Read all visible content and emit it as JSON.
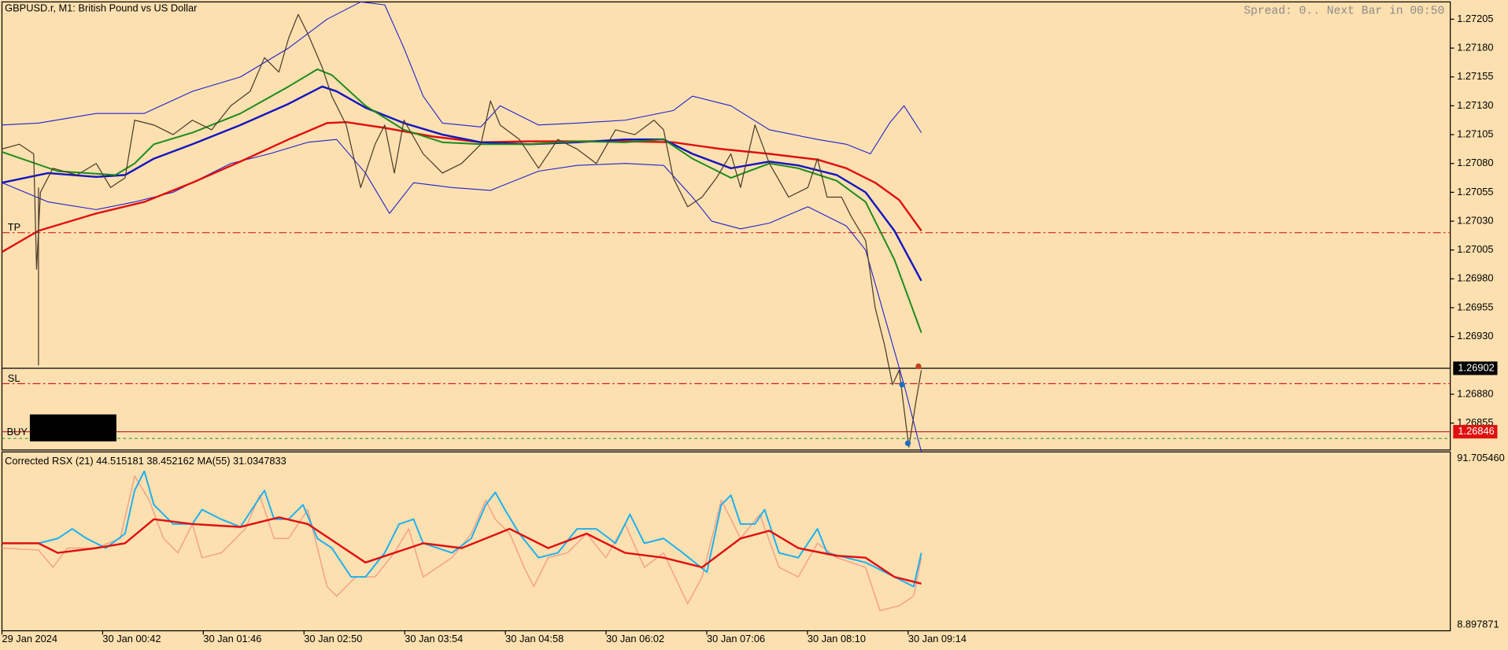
{
  "header": {
    "symbol": "GBPUSD.r, M1:  British Pound vs US Dollar",
    "status": "Spread: 0.. Next Bar in 00:50"
  },
  "price_axis": {
    "labels": [
      "1.27205",
      "1.27180",
      "1.27155",
      "1.27130",
      "1.27105",
      "1.27080",
      "1.27055",
      "1.27030",
      "1.27005",
      "1.26980",
      "1.26955",
      "1.26930",
      "1.26880",
      "1.26855"
    ],
    "current_price": "1.26902",
    "buy_price": "1.26846"
  },
  "levels": {
    "tp": "TP",
    "sl": "SL",
    "buy": "BUY"
  },
  "indicator": {
    "title": "Corrected RSX (21) 44.515181 38.452162 MA(55) 31.0347833",
    "max": "91.705460",
    "min": "8.897871"
  },
  "time_axis": [
    "29 Jan 2024",
    "30 Jan 00:42",
    "30 Jan 01:46",
    "30 Jan 02:50",
    "30 Jan 03:54",
    "30 Jan 04:58",
    "30 Jan 06:02",
    "30 Jan 07:06",
    "30 Jan 08:10",
    "30 Jan 09:14"
  ]
}
